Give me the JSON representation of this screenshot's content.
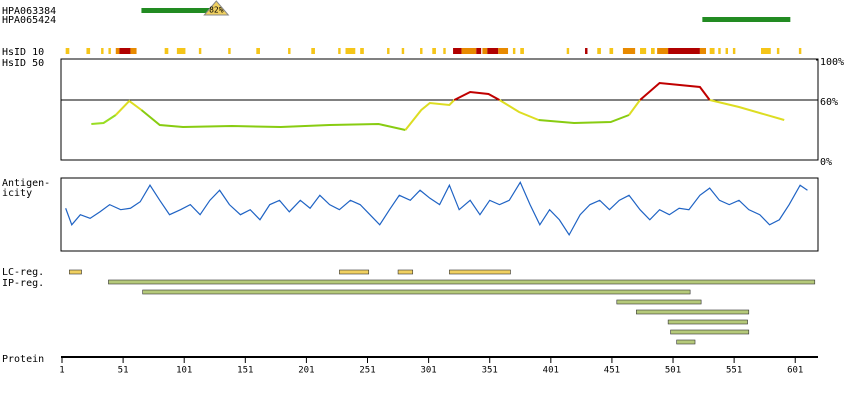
{
  "chart_data": {
    "type": "protein",
    "xlim": [
      1,
      618
    ],
    "xticks": [
      1,
      51,
      101,
      151,
      201,
      251,
      301,
      351,
      401,
      451,
      501,
      551,
      601
    ],
    "axis_label": "Protein",
    "antibodies": [
      {
        "name": "HPA063384",
        "start": 66,
        "end": 124,
        "value": 82,
        "value_label": "82%",
        "color": "#228b22"
      },
      {
        "name": "HPA065424",
        "start": 525,
        "end": 597,
        "color": "#228b22"
      }
    ],
    "hsid10": {
      "label": "HsID 10",
      "segments": [
        {
          "start": 4,
          "end": 7,
          "color": "#f5c518"
        },
        {
          "start": 21,
          "end": 24,
          "color": "#f5c518"
        },
        {
          "start": 33,
          "end": 35,
          "color": "#f5c518"
        },
        {
          "start": 39,
          "end": 41,
          "color": "#f5c518"
        },
        {
          "start": 45,
          "end": 48,
          "color": "#e88a00"
        },
        {
          "start": 48,
          "end": 57,
          "color": "#b00000"
        },
        {
          "start": 57,
          "end": 62,
          "color": "#e88a00"
        },
        {
          "start": 85,
          "end": 88,
          "color": "#f5c518"
        },
        {
          "start": 95,
          "end": 102,
          "color": "#f5c518"
        },
        {
          "start": 113,
          "end": 115,
          "color": "#f5c518"
        },
        {
          "start": 137,
          "end": 139,
          "color": "#f5c518"
        },
        {
          "start": 160,
          "end": 163,
          "color": "#f5c518"
        },
        {
          "start": 186,
          "end": 188,
          "color": "#f5c518"
        },
        {
          "start": 205,
          "end": 208,
          "color": "#f5c518"
        },
        {
          "start": 227,
          "end": 229,
          "color": "#f5c518"
        },
        {
          "start": 233,
          "end": 241,
          "color": "#f5c518"
        },
        {
          "start": 245,
          "end": 248,
          "color": "#f5c518"
        },
        {
          "start": 267,
          "end": 269,
          "color": "#f5c518"
        },
        {
          "start": 279,
          "end": 281,
          "color": "#f5c518"
        },
        {
          "start": 294,
          "end": 296,
          "color": "#f5c518"
        },
        {
          "start": 304,
          "end": 307,
          "color": "#f5c518"
        },
        {
          "start": 313,
          "end": 315,
          "color": "#f5c518"
        },
        {
          "start": 321,
          "end": 328,
          "color": "#b00000"
        },
        {
          "start": 328,
          "end": 340,
          "color": "#e88a00"
        },
        {
          "start": 340,
          "end": 344,
          "color": "#b00000"
        },
        {
          "start": 345,
          "end": 349,
          "color": "#e88a00"
        },
        {
          "start": 349,
          "end": 358,
          "color": "#b00000"
        },
        {
          "start": 358,
          "end": 366,
          "color": "#e88a00"
        },
        {
          "start": 370,
          "end": 372,
          "color": "#f5c518"
        },
        {
          "start": 376,
          "end": 379,
          "color": "#f5c518"
        },
        {
          "start": 414,
          "end": 416,
          "color": "#f5c518"
        },
        {
          "start": 429,
          "end": 431,
          "color": "#b00000"
        },
        {
          "start": 439,
          "end": 442,
          "color": "#f5c518"
        },
        {
          "start": 449,
          "end": 452,
          "color": "#f5c518"
        },
        {
          "start": 460,
          "end": 470,
          "color": "#e88a00"
        },
        {
          "start": 474,
          "end": 479,
          "color": "#f5c518"
        },
        {
          "start": 483,
          "end": 486,
          "color": "#f5c518"
        },
        {
          "start": 488,
          "end": 497,
          "color": "#e88a00"
        },
        {
          "start": 497,
          "end": 523,
          "color": "#b00000"
        },
        {
          "start": 523,
          "end": 528,
          "color": "#e88a00"
        },
        {
          "start": 531,
          "end": 535,
          "color": "#f5c518"
        },
        {
          "start": 538,
          "end": 540,
          "color": "#f5c518"
        },
        {
          "start": 544,
          "end": 546,
          "color": "#f5c518"
        },
        {
          "start": 550,
          "end": 552,
          "color": "#f5c518"
        },
        {
          "start": 573,
          "end": 581,
          "color": "#f5c518"
        },
        {
          "start": 586,
          "end": 588,
          "color": "#f5c518"
        },
        {
          "start": 604,
          "end": 606,
          "color": "#f5c518"
        }
      ]
    },
    "hsid50": {
      "label": "HsID 50",
      "ylim": [
        0,
        100
      ],
      "refline": 60,
      "yticks": [
        {
          "value": 100,
          "label": "100%"
        },
        {
          "value": 60,
          "label": "60%"
        },
        {
          "value": 0,
          "label": "0%"
        }
      ],
      "series": [
        {
          "color": "#99dd22",
          "x": [
            25,
            35,
            45
          ],
          "values": [
            36,
            37,
            45
          ]
        },
        {
          "color": "#dddd22",
          "x": [
            45,
            56,
            66
          ],
          "values": [
            45,
            59,
            50
          ]
        },
        {
          "color": "#88cc11",
          "x": [
            66,
            81,
            100,
            140,
            180,
            220,
            260,
            282
          ],
          "values": [
            50,
            35,
            33,
            34,
            33,
            35,
            36,
            30
          ]
        },
        {
          "color": "#dddd22",
          "x": [
            282,
            295,
            302,
            318,
            322
          ],
          "values": [
            30,
            50,
            57,
            55,
            60
          ]
        },
        {
          "color": "#c00000",
          "x": [
            322,
            335,
            350,
            359
          ],
          "values": [
            60,
            68,
            66,
            60
          ]
        },
        {
          "color": "#dddd22",
          "x": [
            359,
            375,
            391
          ],
          "values": [
            60,
            48,
            40
          ]
        },
        {
          "color": "#88cc11",
          "x": [
            391,
            420,
            450,
            465
          ],
          "values": [
            40,
            37,
            38,
            45
          ]
        },
        {
          "color": "#dddd22",
          "x": [
            465,
            474
          ],
          "values": [
            45,
            60
          ]
        },
        {
          "color": "#c00000",
          "x": [
            474,
            490,
            523,
            531
          ],
          "values": [
            60,
            77,
            73,
            60
          ]
        },
        {
          "color": "#dddd22",
          "x": [
            531,
            555,
            592
          ],
          "values": [
            60,
            53,
            40
          ]
        }
      ]
    },
    "antigenicity": {
      "label": [
        "Antigen-",
        "icity"
      ],
      "ylim": [
        0,
        100
      ],
      "color": "#1f63c4",
      "x": [
        4,
        9,
        16,
        24,
        32,
        40,
        49,
        57,
        65,
        73,
        81,
        89,
        98,
        106,
        114,
        122,
        130,
        138,
        147,
        155,
        163,
        171,
        179,
        187,
        196,
        204,
        212,
        220,
        228,
        237,
        245,
        253,
        261,
        269,
        277,
        286,
        294,
        302,
        310,
        318,
        326,
        335,
        343,
        351,
        359,
        367,
        376,
        384,
        392,
        400,
        408,
        416,
        425,
        433,
        441,
        449,
        457,
        465,
        474,
        482,
        490,
        498,
        506,
        514,
        523,
        531,
        539,
        547,
        555,
        563,
        572,
        580,
        588,
        596,
        605,
        611
      ],
      "values": [
        58,
        35,
        49,
        44,
        53,
        63,
        56,
        58,
        67,
        90,
        69,
        49,
        56,
        63,
        49,
        69,
        83,
        63,
        49,
        56,
        42,
        63,
        69,
        53,
        69,
        58,
        76,
        63,
        56,
        69,
        63,
        49,
        35,
        56,
        76,
        69,
        83,
        72,
        63,
        90,
        56,
        69,
        49,
        69,
        63,
        69,
        94,
        63,
        35,
        56,
        42,
        21,
        49,
        63,
        69,
        56,
        69,
        76,
        56,
        42,
        56,
        49,
        58,
        56,
        76,
        86,
        69,
        63,
        69,
        56,
        49,
        35,
        42,
        63,
        90,
        83
      ]
    },
    "lc_reg": {
      "label": "LC-reg.",
      "color": "#f0d060",
      "bars": [
        {
          "start": 7,
          "end": 17
        },
        {
          "start": 228,
          "end": 252
        },
        {
          "start": 276,
          "end": 288
        },
        {
          "start": 318,
          "end": 368
        }
      ]
    },
    "ip_reg": {
      "label": "IP-reg.",
      "color": "#b5c97a",
      "bars": [
        {
          "start": 39,
          "end": 617
        },
        {
          "start": 67,
          "end": 515
        },
        {
          "start": 455,
          "end": 524
        },
        {
          "start": 471,
          "end": 563
        },
        {
          "start": 497,
          "end": 562
        },
        {
          "start": 499,
          "end": 563
        },
        {
          "start": 504,
          "end": 519
        }
      ]
    }
  }
}
